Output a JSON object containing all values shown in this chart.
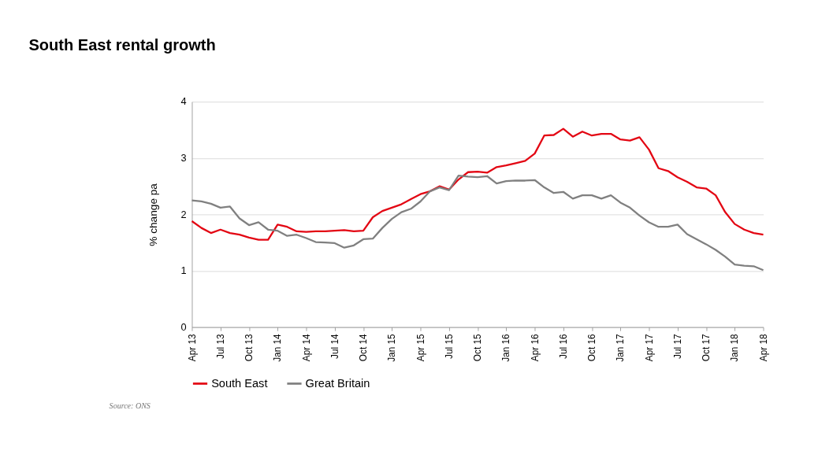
{
  "chart_data": {
    "type": "line",
    "title": "South East rental growth",
    "ylabel": "% change pa",
    "categories": [
      "Apr 13",
      null,
      null,
      "Jul 13",
      null,
      null,
      "Oct 13",
      null,
      null,
      "Jan 14",
      null,
      null,
      "Apr 14",
      null,
      null,
      "Jul 14",
      null,
      null,
      "Oct 14",
      null,
      null,
      "Jan 15",
      null,
      null,
      "Apr 15",
      null,
      null,
      "Jul 15",
      null,
      null,
      "Oct 15",
      null,
      null,
      "Jan 16",
      null,
      null,
      "Apr 16",
      null,
      null,
      "Jul 16",
      null,
      null,
      "Oct 16",
      null,
      null,
      "Jan 17",
      null,
      null,
      "Apr 17",
      null,
      null,
      "Jul 17",
      null,
      null,
      "Oct 17",
      null,
      null,
      "Jan 18",
      null,
      null,
      "Apr 18"
    ],
    "series": [
      {
        "name": "South East",
        "color": "#e30613",
        "values": [
          1.88,
          1.76,
          1.67,
          1.73,
          1.67,
          1.64,
          1.59,
          1.55,
          1.55,
          1.82,
          1.78,
          1.7,
          1.69,
          1.7,
          1.7,
          1.71,
          1.72,
          1.7,
          1.71,
          1.95,
          2.06,
          2.12,
          2.18,
          2.27,
          2.36,
          2.41,
          2.5,
          2.44,
          2.62,
          2.75,
          2.76,
          2.74,
          2.84,
          2.87,
          2.91,
          2.95,
          3.08,
          3.4,
          3.41,
          3.52,
          3.38,
          3.47,
          3.4,
          3.43,
          3.43,
          3.33,
          3.31,
          3.37,
          3.15,
          2.82,
          2.77,
          2.66,
          2.58,
          2.48,
          2.46,
          2.34,
          2.04,
          1.83,
          1.73,
          1.67,
          1.64
        ]
      },
      {
        "name": "Great Britain",
        "color": "#808080",
        "values": [
          2.25,
          2.23,
          2.19,
          2.12,
          2.14,
          1.93,
          1.81,
          1.86,
          1.73,
          1.71,
          1.62,
          1.64,
          1.58,
          1.51,
          1.5,
          1.49,
          1.41,
          1.45,
          1.56,
          1.57,
          1.76,
          1.92,
          2.04,
          2.1,
          2.23,
          2.41,
          2.48,
          2.43,
          2.69,
          2.67,
          2.66,
          2.68,
          2.55,
          2.59,
          2.6,
          2.6,
          2.61,
          2.48,
          2.38,
          2.4,
          2.28,
          2.34,
          2.34,
          2.28,
          2.34,
          2.21,
          2.12,
          1.98,
          1.86,
          1.78,
          1.78,
          1.82,
          1.65,
          1.56,
          1.47,
          1.37,
          1.25,
          1.11,
          1.09,
          1.08,
          1.01
        ]
      }
    ],
    "ylim": [
      0,
      4
    ],
    "yticks": [
      0,
      1,
      2,
      3,
      4
    ],
    "grid": "y",
    "legend": "bottom",
    "marker": "none",
    "line_style": "solid",
    "annotations": [
      "Source: ONS"
    ]
  }
}
